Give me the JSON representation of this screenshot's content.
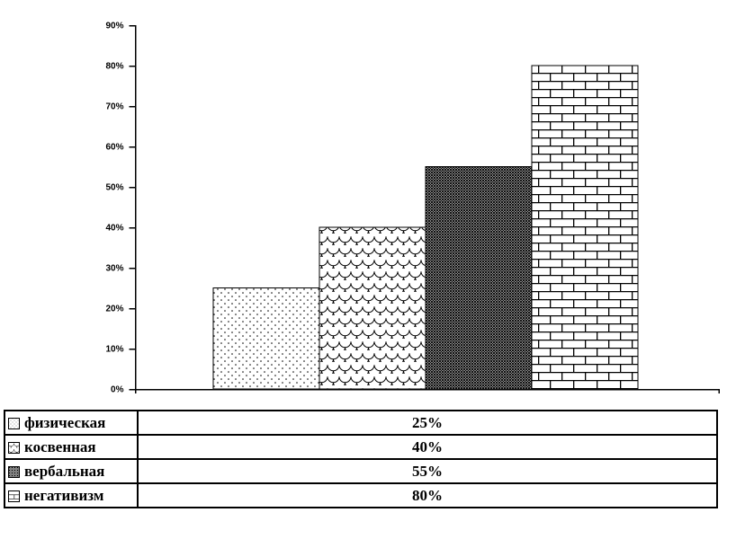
{
  "chart_data": {
    "type": "bar",
    "categories": [
      "физическая",
      "косвенная",
      "вербальная",
      "негативизм"
    ],
    "values": [
      25,
      40,
      55,
      80
    ],
    "value_labels": [
      "25%",
      "40%",
      "55%",
      "80%"
    ],
    "bar_patterns": [
      "dots",
      "scales",
      "lattice",
      "bricks"
    ],
    "title": "",
    "xlabel": "",
    "ylabel": "",
    "ylim": [
      0,
      90
    ],
    "ytick_step": 10,
    "ytick_labels": [
      "0%",
      "10%",
      "20%",
      "30%",
      "40%",
      "50%",
      "60%",
      "70%",
      "80%",
      "90%"
    ],
    "grid": false,
    "legend_position": "bottom-table"
  },
  "legend": {
    "rows": [
      {
        "label": "физическая",
        "value": "25%",
        "pattern": "dots"
      },
      {
        "label": "косвенная",
        "value": "40%",
        "pattern": "scales"
      },
      {
        "label": "вербальная",
        "value": "55%",
        "pattern": "lattice"
      },
      {
        "label": "негативизм",
        "value": "80%",
        "pattern": "bricks"
      }
    ]
  },
  "colors": {
    "foreground": "#000000",
    "background": "#ffffff"
  }
}
